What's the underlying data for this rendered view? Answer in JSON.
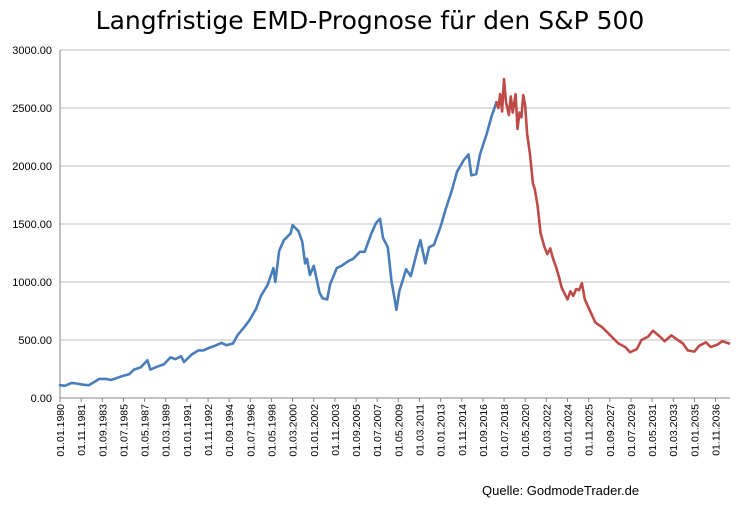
{
  "chart_data": {
    "type": "line",
    "title": "Langfristige EMD-Prognose für den S&P 500",
    "source": "Quelle: GodmodeTrader.de",
    "xlabel": "",
    "ylabel": "",
    "ylim": [
      0,
      3000
    ],
    "y_ticks": [
      "0.00",
      "500.00",
      "1000.00",
      "1500.00",
      "2000.00",
      "2500.00",
      "3000.00"
    ],
    "x_range": [
      "1980-01-01",
      "2038-02-01"
    ],
    "x_ticks": [
      "01.01.1980",
      "01.11.1981",
      "01.09.1983",
      "01.07.1985",
      "01.05.1987",
      "01.03.1989",
      "01.01.1991",
      "01.11.1992",
      "01.09.1994",
      "01.07.1996",
      "01.05.1998",
      "01.03.2000",
      "01.01.2002",
      "01.11.2003",
      "01.09.2005",
      "01.07.2007",
      "01.05.2009",
      "01.03.2011",
      "01.01.2013",
      "01.11.2014",
      "01.09.2016",
      "01.07.2018",
      "01.05.2020",
      "01.03.2022",
      "01.01.2024",
      "01.11.2025",
      "01.09.2027",
      "01.07.2029",
      "01.05.2031",
      "01.03.2033",
      "01.01.2035",
      "01.11.2036"
    ],
    "grid": true,
    "series": [
      {
        "name": "",
        "color": "#4a7ebb",
        "points": [
          [
            "1980-01-01",
            110
          ],
          [
            "1980-06-01",
            105
          ],
          [
            "1981-01-01",
            130
          ],
          [
            "1981-06-01",
            125
          ],
          [
            "1982-01-01",
            115
          ],
          [
            "1982-07-01",
            110
          ],
          [
            "1983-01-01",
            140
          ],
          [
            "1983-06-01",
            165
          ],
          [
            "1984-01-01",
            165
          ],
          [
            "1984-06-01",
            155
          ],
          [
            "1985-01-01",
            175
          ],
          [
            "1985-06-01",
            190
          ],
          [
            "1986-01-01",
            205
          ],
          [
            "1986-06-01",
            245
          ],
          [
            "1987-01-01",
            265
          ],
          [
            "1987-08-01",
            325
          ],
          [
            "1987-11-01",
            245
          ],
          [
            "1988-06-01",
            270
          ],
          [
            "1989-01-01",
            290
          ],
          [
            "1989-08-01",
            350
          ],
          [
            "1990-01-01",
            335
          ],
          [
            "1990-07-01",
            360
          ],
          [
            "1990-10-01",
            310
          ],
          [
            "1991-06-01",
            375
          ],
          [
            "1992-01-01",
            410
          ],
          [
            "1992-06-01",
            410
          ],
          [
            "1993-01-01",
            435
          ],
          [
            "1993-06-01",
            450
          ],
          [
            "1994-01-01",
            475
          ],
          [
            "1994-06-01",
            455
          ],
          [
            "1995-01-01",
            470
          ],
          [
            "1995-06-01",
            545
          ],
          [
            "1996-01-01",
            615
          ],
          [
            "1996-06-01",
            670
          ],
          [
            "1997-01-01",
            770
          ],
          [
            "1997-06-01",
            880
          ],
          [
            "1998-01-01",
            975
          ],
          [
            "1998-07-01",
            1120
          ],
          [
            "1998-09-01",
            1000
          ],
          [
            "1999-01-01",
            1270
          ],
          [
            "1999-06-01",
            1360
          ],
          [
            "2000-01-01",
            1420
          ],
          [
            "2000-03-01",
            1490
          ],
          [
            "2000-09-01",
            1440
          ],
          [
            "2001-01-01",
            1350
          ],
          [
            "2001-04-01",
            1160
          ],
          [
            "2001-06-01",
            1200
          ],
          [
            "2001-09-01",
            1060
          ],
          [
            "2002-01-01",
            1140
          ],
          [
            "2002-07-01",
            910
          ],
          [
            "2002-10-01",
            860
          ],
          [
            "2003-03-01",
            850
          ],
          [
            "2003-06-01",
            980
          ],
          [
            "2004-01-01",
            1120
          ],
          [
            "2004-06-01",
            1140
          ],
          [
            "2005-01-01",
            1180
          ],
          [
            "2005-06-01",
            1200
          ],
          [
            "2006-01-01",
            1260
          ],
          [
            "2006-06-01",
            1260
          ],
          [
            "2007-01-01",
            1420
          ],
          [
            "2007-06-01",
            1510
          ],
          [
            "2007-10-01",
            1545
          ],
          [
            "2008-01-01",
            1380
          ],
          [
            "2008-06-01",
            1300
          ],
          [
            "2008-10-01",
            1000
          ],
          [
            "2009-01-01",
            860
          ],
          [
            "2009-03-01",
            760
          ],
          [
            "2009-06-01",
            920
          ],
          [
            "2010-01-01",
            1110
          ],
          [
            "2010-06-01",
            1050
          ],
          [
            "2011-01-01",
            1280
          ],
          [
            "2011-04-01",
            1360
          ],
          [
            "2011-09-01",
            1160
          ],
          [
            "2012-01-01",
            1300
          ],
          [
            "2012-06-01",
            1320
          ],
          [
            "2013-01-01",
            1480
          ],
          [
            "2013-06-01",
            1620
          ],
          [
            "2014-01-01",
            1800
          ],
          [
            "2014-06-01",
            1950
          ],
          [
            "2015-01-01",
            2050
          ],
          [
            "2015-06-01",
            2100
          ],
          [
            "2015-09-01",
            1920
          ],
          [
            "2016-02-01",
            1930
          ],
          [
            "2016-06-01",
            2100
          ],
          [
            "2017-01-01",
            2280
          ],
          [
            "2017-06-01",
            2430
          ],
          [
            "2017-09-01",
            2500
          ],
          [
            "2017-11-01",
            2550
          ]
        ]
      },
      {
        "name": "",
        "color": "#be4b48",
        "points": [
          [
            "2017-11-01",
            2550
          ],
          [
            "2018-01-01",
            2500
          ],
          [
            "2018-03-01",
            2620
          ],
          [
            "2018-05-01",
            2470
          ],
          [
            "2018-07-01",
            2750
          ],
          [
            "2018-09-01",
            2550
          ],
          [
            "2018-12-01",
            2440
          ],
          [
            "2019-02-01",
            2600
          ],
          [
            "2019-04-01",
            2460
          ],
          [
            "2019-07-01",
            2620
          ],
          [
            "2019-09-01",
            2320
          ],
          [
            "2019-11-01",
            2460
          ],
          [
            "2020-01-01",
            2420
          ],
          [
            "2020-03-01",
            2610
          ],
          [
            "2020-05-01",
            2520
          ],
          [
            "2020-07-01",
            2280
          ],
          [
            "2020-10-01",
            2100
          ],
          [
            "2021-01-01",
            1850
          ],
          [
            "2021-03-01",
            1800
          ],
          [
            "2021-06-01",
            1650
          ],
          [
            "2021-09-01",
            1420
          ],
          [
            "2022-01-01",
            1300
          ],
          [
            "2022-04-01",
            1240
          ],
          [
            "2022-07-01",
            1290
          ],
          [
            "2022-10-01",
            1200
          ],
          [
            "2023-01-01",
            1130
          ],
          [
            "2023-04-01",
            1050
          ],
          [
            "2023-07-01",
            950
          ],
          [
            "2023-10-01",
            900
          ],
          [
            "2024-01-01",
            850
          ],
          [
            "2024-04-01",
            920
          ],
          [
            "2024-07-01",
            880
          ],
          [
            "2024-10-01",
            940
          ],
          [
            "2025-01-01",
            930
          ],
          [
            "2025-04-01",
            990
          ],
          [
            "2025-07-01",
            850
          ],
          [
            "2026-01-01",
            740
          ],
          [
            "2026-06-01",
            650
          ],
          [
            "2027-01-01",
            610
          ],
          [
            "2027-06-01",
            570
          ],
          [
            "2028-01-01",
            510
          ],
          [
            "2028-06-01",
            470
          ],
          [
            "2029-01-01",
            440
          ],
          [
            "2029-06-01",
            395
          ],
          [
            "2030-01-01",
            420
          ],
          [
            "2030-06-01",
            500
          ],
          [
            "2031-01-01",
            530
          ],
          [
            "2031-06-01",
            580
          ],
          [
            "2032-01-01",
            530
          ],
          [
            "2032-06-01",
            490
          ],
          [
            "2033-01-01",
            540
          ],
          [
            "2033-06-01",
            510
          ],
          [
            "2034-01-01",
            470
          ],
          [
            "2034-06-01",
            410
          ],
          [
            "2035-01-01",
            400
          ],
          [
            "2035-06-01",
            450
          ],
          [
            "2036-01-01",
            480
          ],
          [
            "2036-06-01",
            440
          ],
          [
            "2037-01-01",
            460
          ],
          [
            "2037-06-01",
            490
          ],
          [
            "2038-01-01",
            470
          ]
        ]
      }
    ]
  }
}
